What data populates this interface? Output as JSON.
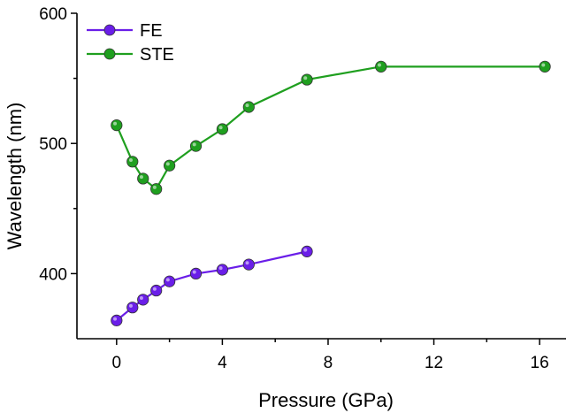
{
  "chart_data": {
    "type": "line",
    "title": "",
    "xlabel": "Pressure (GPa)",
    "ylabel": "Wavelength (nm)",
    "xlim": [
      -1.5,
      17
    ],
    "ylim": [
      350,
      600
    ],
    "x_ticks": [
      0,
      4,
      8,
      12,
      16
    ],
    "y_ticks": [
      400,
      500,
      600
    ],
    "grid": false,
    "legend_position": "top-left",
    "series": [
      {
        "name": "FE",
        "color": "#6a1ee8",
        "x": [
          0,
          0.6,
          1.0,
          1.5,
          2.0,
          3.0,
          4.0,
          5.0,
          7.2
        ],
        "y": [
          364,
          374,
          380,
          387,
          394,
          400,
          403,
          407,
          417
        ]
      },
      {
        "name": "STE",
        "color": "#1f9f1f",
        "x": [
          0,
          0.6,
          1.0,
          1.5,
          2.0,
          3.0,
          4.0,
          5.0,
          7.2,
          10.0,
          16.2
        ],
        "y": [
          514,
          486,
          473,
          465,
          483,
          498,
          511,
          528,
          549,
          559,
          559
        ]
      }
    ]
  }
}
